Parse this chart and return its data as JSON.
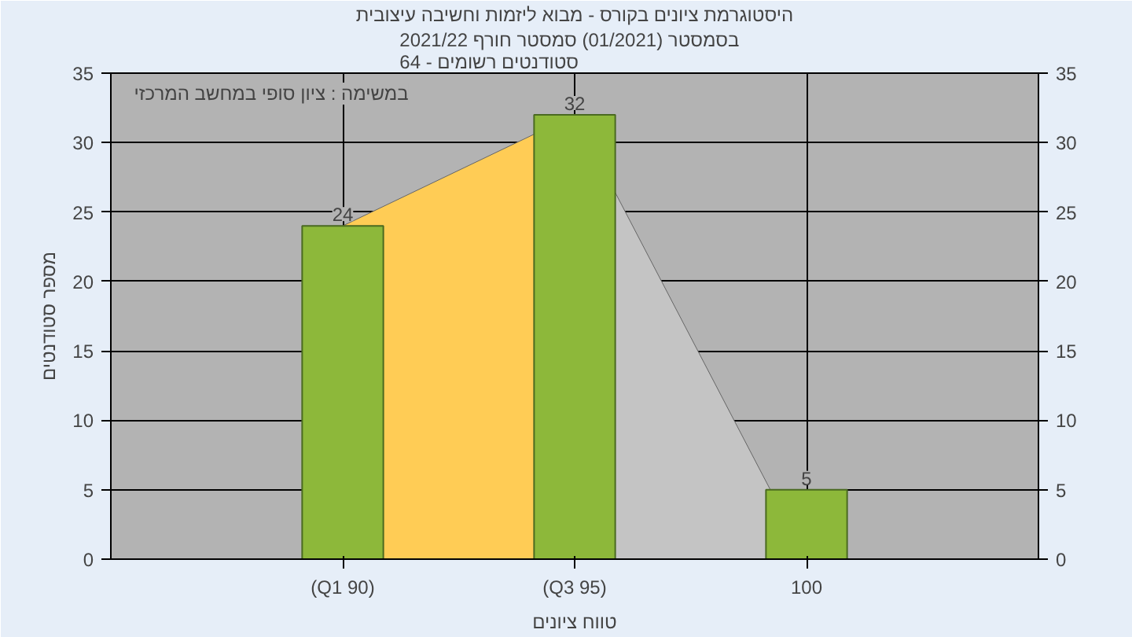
{
  "chart_data": {
    "type": "bar",
    "title": "היסטוגרמת ציונים בקורס - מבוא ליזמות וחשיבה עיצובית",
    "subtitle": "בסמסטר  (01/2021)  סמסטר חורף 2021/22\nסטודנטים רשומים - 64",
    "xlabel": "טווח ציונים",
    "ylabel": "מספר סטודנטים",
    "annotations": [
      "במשימה : ציון סופי במחשב המרכזי"
    ],
    "categories": [
      "(Q1 90)",
      "(Q3 95)",
      "100"
    ],
    "series": [
      {
        "type": "area",
        "color": "#ffcc55",
        "values": [
          24,
          32,
          null
        ]
      },
      {
        "type": "area",
        "color": "#c4c4c4",
        "values": [
          null,
          32,
          0
        ]
      },
      {
        "color": "#8db83a",
        "values": [
          24,
          32,
          5
        ],
        "value_labels": [
          "24",
          "32",
          "5"
        ]
      }
    ],
    "ylim": [
      0,
      35
    ],
    "yticks": [
      0,
      5,
      10,
      15,
      20,
      25,
      30,
      35
    ],
    "y2lim": [
      0,
      35
    ],
    "y2ticks": [
      0,
      5,
      10,
      15,
      20,
      25,
      30,
      35
    ],
    "grid": true
  }
}
